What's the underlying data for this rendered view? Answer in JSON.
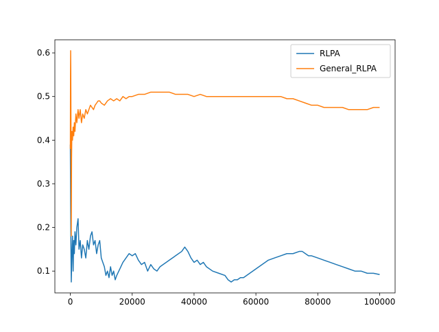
{
  "chart_data": {
    "type": "line",
    "title": "",
    "xlabel": "",
    "ylabel": "",
    "xlim": [
      -5000,
      105000
    ],
    "ylim": [
      0.05,
      0.63
    ],
    "xticks": [
      0,
      20000,
      40000,
      60000,
      80000,
      100000
    ],
    "xtick_labels": [
      "0",
      "20000",
      "40000",
      "60000",
      "80000",
      "100000"
    ],
    "yticks": [
      0.1,
      0.2,
      0.3,
      0.4,
      0.5,
      0.6
    ],
    "ytick_labels": [
      "0.1",
      "0.2",
      "0.3",
      "0.4",
      "0.5",
      "0.6"
    ],
    "grid": false,
    "legend": "top-right",
    "series": [
      {
        "name": "RLPA",
        "color": "#1f77b4",
        "x": [
          0,
          100,
          200,
          300,
          500,
          700,
          900,
          1100,
          1300,
          1500,
          1800,
          2100,
          2500,
          2800,
          3200,
          3600,
          4000,
          4500,
          5000,
          5500,
          6000,
          6500,
          7000,
          7500,
          8000,
          8500,
          9000,
          9500,
          10000,
          10500,
          11000,
          11500,
          12000,
          12500,
          13000,
          13500,
          14000,
          14500,
          15000,
          16000,
          17000,
          18000,
          19000,
          20000,
          21000,
          22000,
          23000,
          24000,
          25000,
          26000,
          27000,
          28000,
          29000,
          30000,
          32000,
          34000,
          36000,
          37000,
          38000,
          39000,
          40000,
          41000,
          42000,
          43000,
          44000,
          46000,
          48000,
          50000,
          51000,
          52000,
          53000,
          54000,
          55000,
          56000,
          58000,
          60000,
          62000,
          64000,
          66000,
          68000,
          70000,
          72000,
          74000,
          75000,
          76000,
          77000,
          78000,
          80000,
          82000,
          84000,
          86000,
          88000,
          90000,
          92000,
          94000,
          96000,
          98000,
          100000
        ],
        "y": [
          0.39,
          0.25,
          0.15,
          0.075,
          0.14,
          0.18,
          0.1,
          0.17,
          0.14,
          0.19,
          0.16,
          0.2,
          0.22,
          0.15,
          0.17,
          0.13,
          0.16,
          0.15,
          0.13,
          0.17,
          0.15,
          0.18,
          0.19,
          0.16,
          0.17,
          0.14,
          0.16,
          0.17,
          0.13,
          0.12,
          0.11,
          0.09,
          0.1,
          0.085,
          0.11,
          0.09,
          0.1,
          0.08,
          0.09,
          0.105,
          0.12,
          0.13,
          0.14,
          0.135,
          0.14,
          0.125,
          0.115,
          0.12,
          0.1,
          0.115,
          0.105,
          0.1,
          0.11,
          0.115,
          0.125,
          0.135,
          0.145,
          0.155,
          0.145,
          0.13,
          0.12,
          0.125,
          0.115,
          0.12,
          0.11,
          0.1,
          0.095,
          0.09,
          0.08,
          0.075,
          0.08,
          0.08,
          0.085,
          0.085,
          0.095,
          0.105,
          0.115,
          0.125,
          0.13,
          0.135,
          0.14,
          0.14,
          0.145,
          0.145,
          0.14,
          0.135,
          0.135,
          0.13,
          0.125,
          0.12,
          0.115,
          0.11,
          0.105,
          0.1,
          0.1,
          0.095,
          0.095,
          0.092
        ]
      },
      {
        "name": "General_RLPA",
        "color": "#ff7f0e",
        "x": [
          0,
          50,
          100,
          150,
          200,
          300,
          400,
          500,
          700,
          900,
          1100,
          1300,
          1500,
          1800,
          2100,
          2500,
          2800,
          3200,
          3600,
          4000,
          4500,
          5000,
          5500,
          6000,
          6500,
          7000,
          7500,
          8000,
          8500,
          9000,
          9500,
          10000,
          11000,
          12000,
          13000,
          14000,
          15000,
          16000,
          17000,
          18000,
          19000,
          20000,
          22000,
          24000,
          26000,
          28000,
          30000,
          32000,
          34000,
          36000,
          38000,
          40000,
          42000,
          44000,
          46000,
          48000,
          50000,
          52000,
          54000,
          56000,
          58000,
          60000,
          62000,
          64000,
          66000,
          68000,
          70000,
          72000,
          74000,
          76000,
          78000,
          80000,
          82000,
          84000,
          86000,
          88000,
          90000,
          92000,
          94000,
          96000,
          98000,
          100000
        ],
        "y": [
          0.38,
          0.54,
          0.605,
          0.56,
          0.45,
          0.18,
          0.36,
          0.42,
          0.4,
          0.43,
          0.41,
          0.44,
          0.42,
          0.46,
          0.44,
          0.47,
          0.45,
          0.47,
          0.44,
          0.46,
          0.45,
          0.47,
          0.46,
          0.47,
          0.48,
          0.475,
          0.47,
          0.48,
          0.485,
          0.49,
          0.49,
          0.485,
          0.48,
          0.49,
          0.495,
          0.49,
          0.495,
          0.49,
          0.5,
          0.495,
          0.5,
          0.5,
          0.505,
          0.505,
          0.51,
          0.51,
          0.51,
          0.51,
          0.505,
          0.505,
          0.505,
          0.5,
          0.505,
          0.5,
          0.5,
          0.5,
          0.5,
          0.5,
          0.5,
          0.5,
          0.5,
          0.5,
          0.5,
          0.5,
          0.5,
          0.5,
          0.495,
          0.495,
          0.49,
          0.485,
          0.48,
          0.48,
          0.475,
          0.475,
          0.475,
          0.475,
          0.47,
          0.47,
          0.47,
          0.47,
          0.475,
          0.475
        ]
      }
    ]
  }
}
